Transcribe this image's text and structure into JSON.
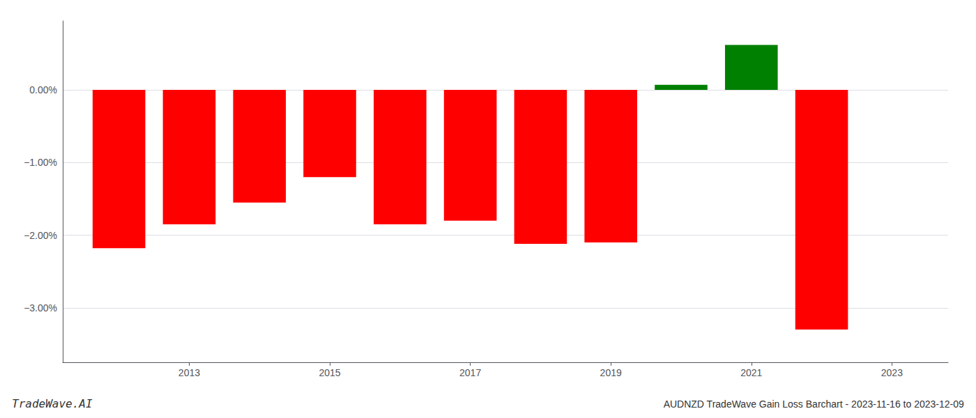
{
  "chart_data": {
    "type": "bar",
    "title": "AUDNZD TradeWave Gain Loss Barchart - 2023-11-16 to 2023-12-09",
    "annotations": [
      "TradeWave.AI"
    ],
    "x": [
      2012,
      2013,
      2014,
      2015,
      2016,
      2017,
      2018,
      2019,
      2020,
      2021,
      2022
    ],
    "values": [
      -2.18,
      -1.85,
      -1.55,
      -1.2,
      -1.85,
      -1.8,
      -2.12,
      -2.1,
      0.07,
      0.62,
      -3.3
    ],
    "colors": [
      "#ff0000",
      "#ff0000",
      "#ff0000",
      "#ff0000",
      "#ff0000",
      "#ff0000",
      "#ff0000",
      "#ff0000",
      "#008000",
      "#008000",
      "#ff0000"
    ],
    "xlim": [
      2011.2,
      2023.8
    ],
    "xticks": [
      2013,
      2015,
      2017,
      2019,
      2021,
      2023
    ],
    "ylim": [
      -3.75,
      0.95
    ],
    "yticks": [
      {
        "value": 0.0,
        "label": "0.00%"
      },
      {
        "value": -1.0,
        "label": "−1.00%"
      },
      {
        "value": -2.0,
        "label": "−2.00%"
      },
      {
        "value": -3.0,
        "label": "−3.00%"
      }
    ],
    "grid": true
  }
}
